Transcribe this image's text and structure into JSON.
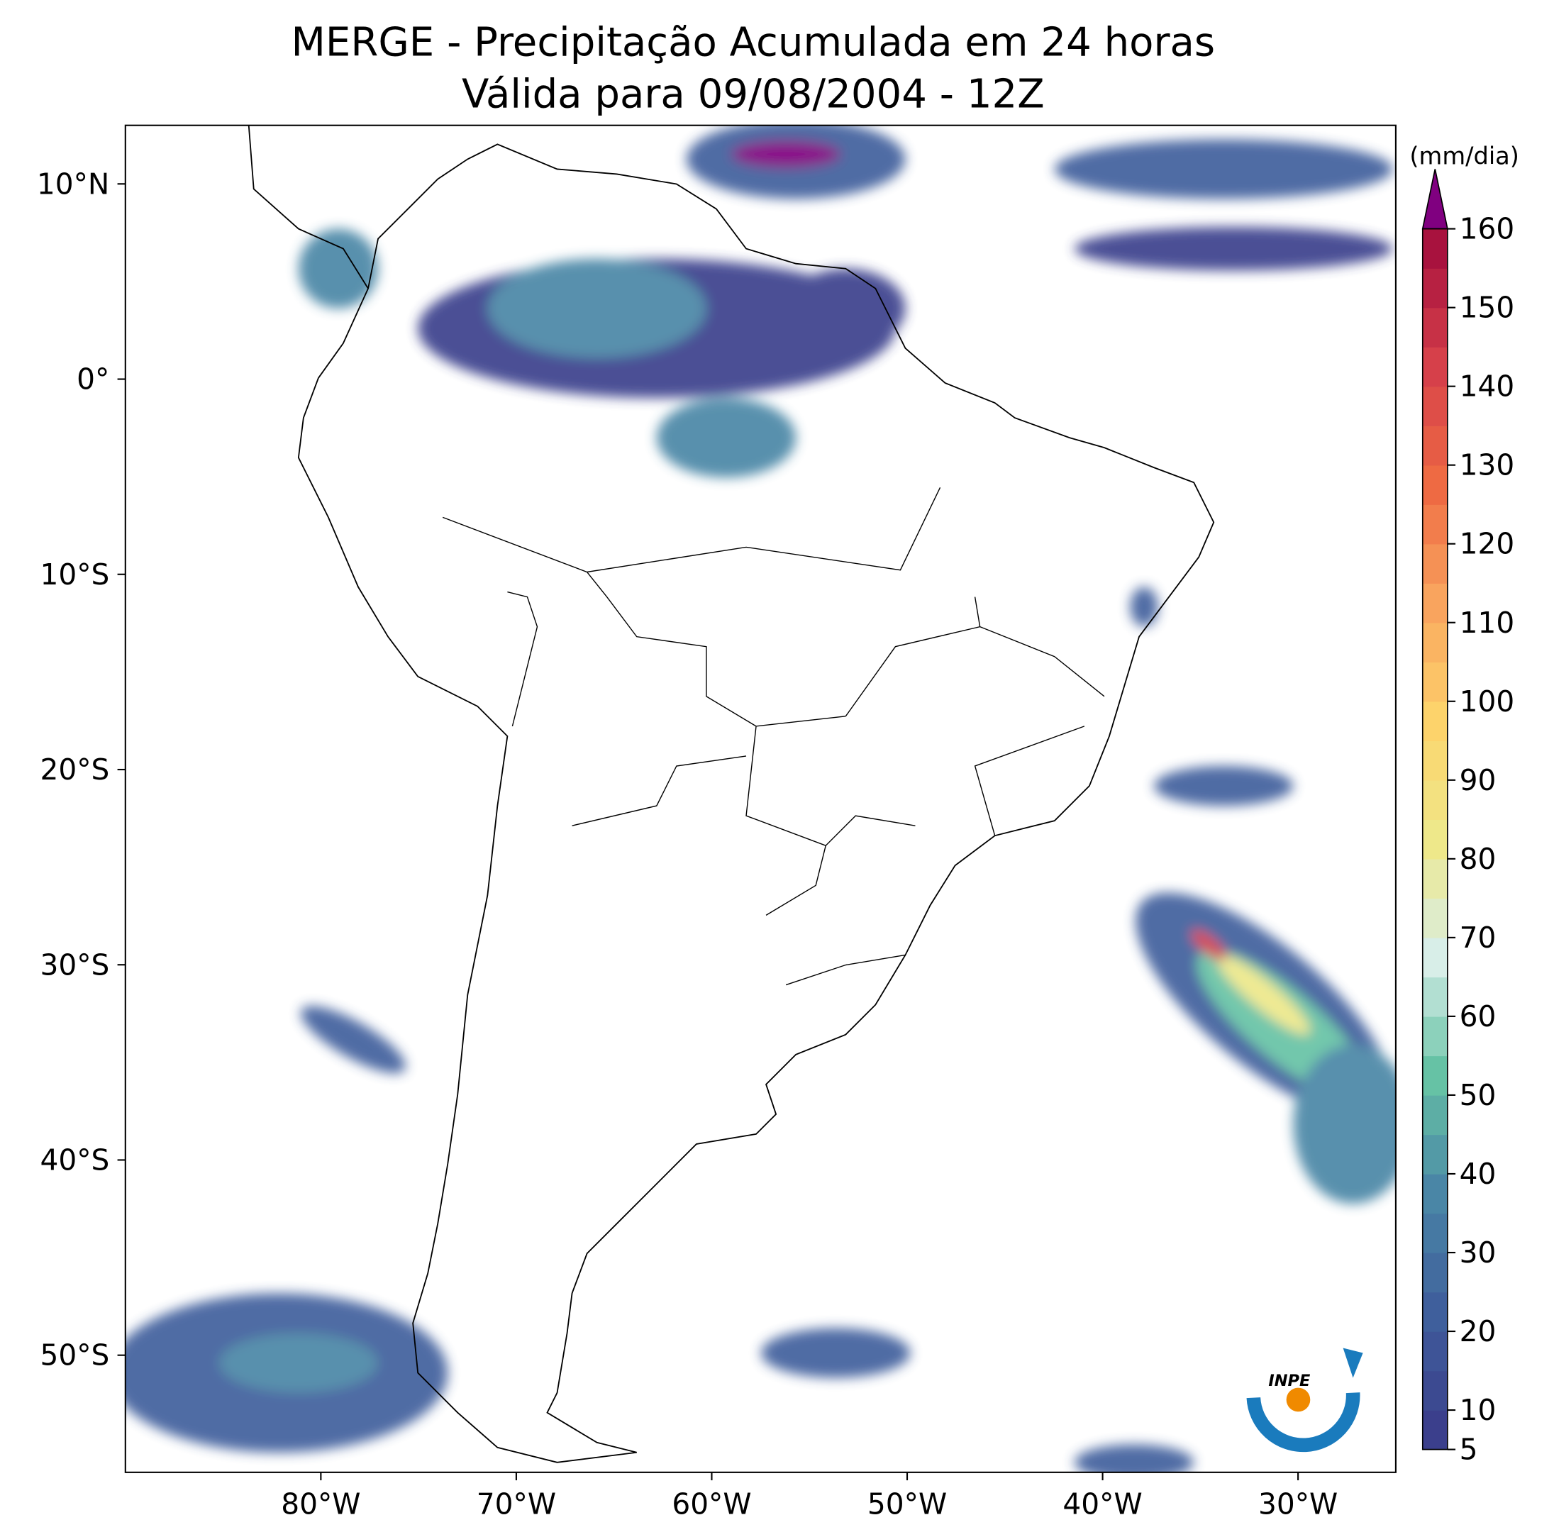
{
  "chart_data": {
    "type": "map",
    "title": "MERGE - Precipitação Acumulada em 24 horas",
    "subtitle": "Válida para 09/08/2004 - 12Z",
    "xlim": [
      -90,
      -25
    ],
    "ylim": [
      -56,
      13
    ],
    "xticks": [
      {
        "value": -80,
        "label": "80°W"
      },
      {
        "value": -70,
        "label": "70°W"
      },
      {
        "value": -60,
        "label": "60°W"
      },
      {
        "value": -50,
        "label": "50°W"
      },
      {
        "value": -40,
        "label": "40°W"
      },
      {
        "value": -30,
        "label": "30°W"
      }
    ],
    "yticks": [
      {
        "value": 10,
        "label": "10°N"
      },
      {
        "value": 0,
        "label": "0°"
      },
      {
        "value": -10,
        "label": "10°S"
      },
      {
        "value": -20,
        "label": "20°S"
      },
      {
        "value": -30,
        "label": "30°S"
      },
      {
        "value": -40,
        "label": "40°S"
      },
      {
        "value": -50,
        "label": "50°S"
      }
    ],
    "colorbar": {
      "label": "(mm/dia)",
      "lim": [
        5,
        160
      ],
      "ticks": [
        5,
        10,
        20,
        30,
        40,
        50,
        60,
        70,
        80,
        90,
        100,
        110,
        120,
        130,
        140,
        150,
        160
      ],
      "step": 5,
      "colormap": [
        "#3b3f8c",
        "#3f5f9c",
        "#4a86a6",
        "#66c2a5",
        "#d8eee8",
        "#eee88a",
        "#fdd36b",
        "#f9a45e",
        "#ee6a43",
        "#d6404a",
        "#a8123e"
      ],
      "extend_color": "#800080"
    },
    "logo": "INPE"
  }
}
